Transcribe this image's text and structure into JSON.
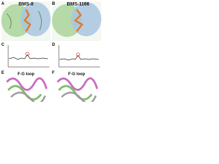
{
  "panels": [
    {
      "letter": "A",
      "title": "BMS-8"
    },
    {
      "letter": "B",
      "title": "BMS-1166"
    },
    {
      "letter": "C"
    },
    {
      "letter": "D"
    },
    {
      "letter": "E",
      "title": "F-G loop"
    },
    {
      "letter": "F",
      "title": "F-G loop"
    }
  ]
}
